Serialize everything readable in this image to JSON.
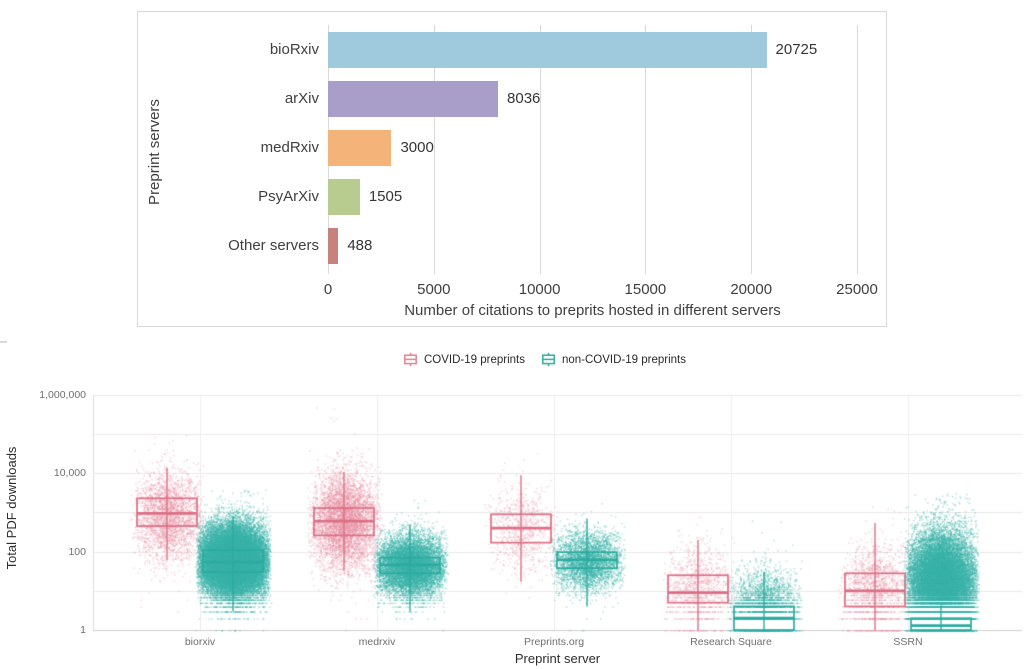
{
  "chart_data": [
    {
      "type": "bar",
      "orientation": "horizontal",
      "title": "",
      "xlabel": "Number of citations to preprits hosted in different servers",
      "ylabel": "Preprint servers",
      "categories": [
        "bioRxiv",
        "arXiv",
        "medRxiv",
        "PsyArXiv",
        "Other servers"
      ],
      "values": [
        20725,
        8036,
        3000,
        1505,
        488
      ],
      "value_labels": [
        "20725",
        "8036",
        "3000",
        "1505",
        "488"
      ],
      "bar_colors": [
        "#9fcade",
        "#a99dc9",
        "#f3b379",
        "#b7cc8e",
        "#c8827e"
      ],
      "xlim": [
        0,
        25000
      ],
      "xticks": [
        0,
        5000,
        10000,
        15000,
        20000,
        25000
      ],
      "xtick_labels": [
        "0",
        "5000",
        "10000",
        "15000",
        "20000",
        "25000"
      ],
      "grid": true,
      "grid_color": "#d9d9d9",
      "text_color": "#404040",
      "border_color": "#d9d9d9"
    },
    {
      "type": "boxplot-jitter",
      "title": "",
      "xlabel": "Preprint server",
      "ylabel": "Total PDF downloads",
      "yscale": "log10",
      "ylim": [
        1,
        1000000
      ],
      "grid": true,
      "yticks": [
        {
          "value": 1,
          "label": "1"
        },
        {
          "value": 100,
          "label": "100"
        },
        {
          "value": 10000,
          "label": "10,000"
        },
        {
          "value": 1000000,
          "label": "1,000,000"
        }
      ],
      "categories": [
        "biorxiv",
        "medrxiv",
        "Preprints.org",
        "Research Square",
        "SSRN"
      ],
      "legend": [
        {
          "label": "COVID-19 preprints",
          "color": "#e8899b"
        },
        {
          "label": "non-COVID-19 preprints",
          "color": "#3ab5a9"
        }
      ],
      "series": [
        {
          "name": "COVID-19 preprints",
          "box_color": "#dc6f85",
          "point_color": "#e891a2",
          "boxes": [
            {
              "whisker_low": 60,
              "q1": 450,
              "median": 950,
              "q3": 2300,
              "whisker_high": 14000
            },
            {
              "whisker_low": 33,
              "q1": 260,
              "median": 600,
              "q3": 1300,
              "whisker_high": 11000
            },
            {
              "whisker_low": 17,
              "q1": 170,
              "median": 400,
              "q3": 900,
              "whisker_high": 9000
            },
            {
              "whisker_low": 1,
              "q1": 5,
              "median": 9,
              "q3": 25,
              "whisker_high": 200
            },
            {
              "whisker_low": 1,
              "q1": 4,
              "median": 10,
              "q3": 28,
              "whisker_high": 540
            }
          ],
          "jitter": [
            {
              "n": 2500,
              "log_mean": 2.92,
              "log_sd": 0.55,
              "log_max": 5.35
            },
            {
              "n": 5000,
              "log_mean": 2.78,
              "log_sd": 0.6,
              "log_max": 5.85
            },
            {
              "n": 700,
              "log_mean": 2.6,
              "log_sd": 0.55,
              "log_max": 4.6
            },
            {
              "n": 1000,
              "log_mean": 1.05,
              "log_sd": 0.55,
              "log_max": 3.3
            },
            {
              "n": 1500,
              "log_mean": 1.05,
              "log_sd": 0.6,
              "log_max": 3.7
            }
          ]
        },
        {
          "name": "non-COVID-19 preprints",
          "box_color": "#2bab9f",
          "point_color": "#3ab3a7",
          "boxes": [
            {
              "whisker_low": 3,
              "q1": 30,
              "median": 54,
              "q3": 110,
              "whisker_high": 800
            },
            {
              "whisker_low": 3,
              "q1": 28,
              "median": 46,
              "q3": 70,
              "whisker_high": 500
            },
            {
              "whisker_low": 4,
              "q1": 38,
              "median": 62,
              "q3": 97,
              "whisker_high": 700
            },
            {
              "whisker_low": 1,
              "q1": 1,
              "median": 2,
              "q3": 4,
              "whisker_high": 30
            },
            {
              "whisker_low": 1,
              "q1": 1,
              "median": 1.3,
              "q3": 2,
              "whisker_high": 4.3
            }
          ],
          "jitter": [
            {
              "n": 28000,
              "log_mean": 1.78,
              "log_sd": 0.45,
              "log_max": 3.6
            },
            {
              "n": 9000,
              "log_mean": 1.65,
              "log_sd": 0.38,
              "log_max": 3.4
            },
            {
              "n": 3500,
              "log_mean": 1.78,
              "log_sd": 0.38,
              "log_max": 3.3
            },
            {
              "n": 3000,
              "log_mean": 0.55,
              "log_sd": 0.5,
              "log_max": 2.9
            },
            {
              "n": 22000,
              "log_mean": 1.2,
              "log_sd": 0.62,
              "log_max": 3.5
            }
          ]
        }
      ]
    }
  ]
}
